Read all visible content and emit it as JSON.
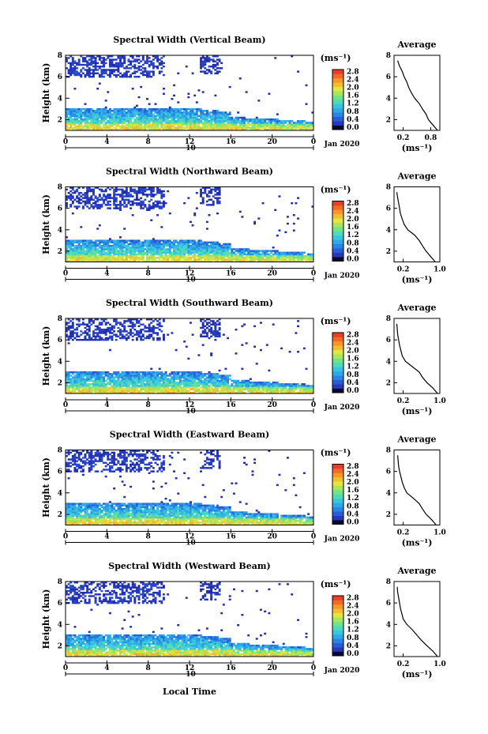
{
  "figure": {
    "common_xlabel": "Local Time",
    "date_label": "Jan 2020",
    "day_label": "10",
    "ylabel": "Height (km)",
    "cb_unit": "(ms⁻¹)",
    "avg_title": "Average",
    "avg_xunit": "(ms⁻¹)"
  },
  "chart_data": [
    {
      "type": "heatmap",
      "title": "Spectral Width (Vertical Beam)",
      "ylabel": "Height (km)",
      "xticks": [
        "0",
        "4",
        "8",
        "12",
        "16",
        "20",
        "0"
      ],
      "yticks": [
        "2",
        "4",
        "6",
        "8"
      ],
      "xlim": [
        0,
        24
      ],
      "ylim": [
        1,
        8
      ],
      "colorbar": {
        "ticks": [
          "0.0",
          "0.4",
          "0.8",
          "1.2",
          "1.6",
          "2.0",
          "2.4",
          "2.8"
        ],
        "range": [
          0,
          2.8
        ]
      },
      "profile": {
        "title": "Average",
        "xticks": [
          "0.2",
          "0.8"
        ],
        "yticks": [
          "2",
          "4",
          "6",
          "8"
        ],
        "xlim": [
          0,
          1.0
        ],
        "heights": [
          1.0,
          1.5,
          2.0,
          2.5,
          3.0,
          3.5,
          4.0,
          4.5,
          5.0,
          5.5,
          6.0,
          6.5,
          7.0,
          7.5
        ],
        "values": [
          0.95,
          0.85,
          0.75,
          0.7,
          0.62,
          0.55,
          0.45,
          0.38,
          0.32,
          0.28,
          0.22,
          0.18,
          0.12,
          0.08
        ]
      }
    },
    {
      "type": "heatmap",
      "title": "Spectral Width (Northward Beam)",
      "ylabel": "Height (km)",
      "xticks": [
        "0",
        "4",
        "8",
        "12",
        "16",
        "20",
        "0"
      ],
      "yticks": [
        "2",
        "4",
        "6",
        "8"
      ],
      "xlim": [
        0,
        24
      ],
      "ylim": [
        1,
        8
      ],
      "colorbar": {
        "ticks": [
          "0.0",
          "0.4",
          "0.8",
          "1.2",
          "1.6",
          "2.0",
          "2.4",
          "2.8"
        ],
        "range": [
          0,
          2.8
        ]
      },
      "profile": {
        "title": "Average",
        "xticks": [
          "0.2",
          "1.0"
        ],
        "yticks": [
          "2",
          "4",
          "6",
          "8"
        ],
        "xlim": [
          0,
          1.0
        ],
        "heights": [
          1.0,
          1.5,
          2.0,
          2.5,
          3.0,
          3.5,
          4.0,
          4.5,
          5.0,
          5.5,
          6.0,
          6.5,
          7.0,
          7.5
        ],
        "values": [
          0.9,
          0.8,
          0.7,
          0.62,
          0.55,
          0.45,
          0.3,
          0.22,
          0.18,
          0.14,
          0.12,
          0.1,
          0.08,
          0.06
        ]
      }
    },
    {
      "type": "heatmap",
      "title": "Spectral Width (Southward Beam)",
      "ylabel": "Height (km)",
      "xticks": [
        "0",
        "4",
        "8",
        "12",
        "16",
        "20",
        "0"
      ],
      "yticks": [
        "2",
        "4",
        "6",
        "8"
      ],
      "xlim": [
        0,
        24
      ],
      "ylim": [
        1,
        8
      ],
      "colorbar": {
        "ticks": [
          "0.0",
          "0.4",
          "0.8",
          "1.2",
          "1.6",
          "2.0",
          "2.4",
          "2.8"
        ],
        "range": [
          0,
          2.8
        ]
      },
      "profile": {
        "title": "Average",
        "xticks": [
          "0.2",
          "1.0"
        ],
        "yticks": [
          "2",
          "4",
          "6",
          "8"
        ],
        "xlim": [
          0,
          1.0
        ],
        "heights": [
          1.0,
          1.5,
          2.0,
          2.5,
          3.0,
          3.5,
          4.0,
          4.5,
          5.0,
          5.5,
          6.0,
          6.5,
          7.0,
          7.5
        ],
        "values": [
          0.95,
          0.85,
          0.72,
          0.62,
          0.55,
          0.4,
          0.25,
          0.18,
          0.15,
          0.12,
          0.1,
          0.08,
          0.07,
          0.06
        ]
      }
    },
    {
      "type": "heatmap",
      "title": "Spectral Width (Eastward Beam)",
      "ylabel": "Height (km)",
      "xticks": [
        "0",
        "4",
        "8",
        "12",
        "16",
        "20",
        "0"
      ],
      "yticks": [
        "2",
        "4",
        "6",
        "8"
      ],
      "xlim": [
        0,
        24
      ],
      "ylim": [
        1,
        8
      ],
      "colorbar": {
        "ticks": [
          "0.0",
          "0.4",
          "0.8",
          "1.2",
          "1.6",
          "2.0",
          "2.4",
          "2.8"
        ],
        "range": [
          0,
          2.8
        ]
      },
      "profile": {
        "title": "Average",
        "xticks": [
          "0.2",
          "1.0"
        ],
        "yticks": [
          "2",
          "4",
          "6",
          "8"
        ],
        "xlim": [
          0,
          1.0
        ],
        "heights": [
          1.0,
          1.5,
          2.0,
          2.5,
          3.0,
          3.5,
          4.0,
          4.5,
          5.0,
          5.5,
          6.0,
          6.5,
          7.0,
          7.5
        ],
        "values": [
          0.92,
          0.82,
          0.7,
          0.62,
          0.55,
          0.42,
          0.28,
          0.22,
          0.18,
          0.15,
          0.12,
          0.1,
          0.09,
          0.08
        ]
      }
    },
    {
      "type": "heatmap",
      "title": "Spectral Width (Westward Beam)",
      "ylabel": "Height (km)",
      "xticks": [
        "0",
        "4",
        "8",
        "12",
        "16",
        "20",
        "0"
      ],
      "yticks": [
        "2",
        "4",
        "6",
        "8"
      ],
      "xlim": [
        0,
        24
      ],
      "ylim": [
        1,
        8
      ],
      "colorbar": {
        "ticks": [
          "0.0",
          "0.4",
          "0.8",
          "1.2",
          "1.6",
          "2.0",
          "2.4",
          "2.8"
        ],
        "range": [
          0,
          2.8
        ]
      },
      "profile": {
        "title": "Average",
        "xticks": [
          "0.2",
          "1.0"
        ],
        "yticks": [
          "2",
          "4",
          "6",
          "8"
        ],
        "xlim": [
          0,
          1.0
        ],
        "heights": [
          1.0,
          1.5,
          2.0,
          2.5,
          3.0,
          3.5,
          4.0,
          4.5,
          5.0,
          5.5,
          6.0,
          6.5,
          7.0,
          7.5
        ],
        "values": [
          0.95,
          0.85,
          0.72,
          0.6,
          0.5,
          0.4,
          0.28,
          0.2,
          0.17,
          0.14,
          0.12,
          0.1,
          0.08,
          0.07
        ]
      }
    }
  ]
}
